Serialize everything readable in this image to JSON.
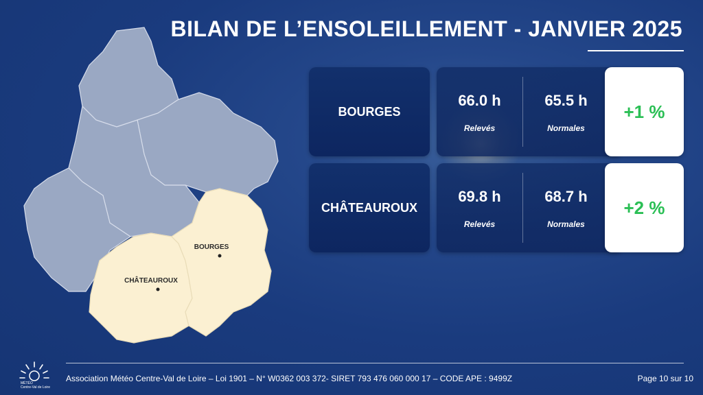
{
  "title": "BILAN DE L’ENSOLEILLEMENT - JANVIER 2025",
  "map": {
    "labels": [
      {
        "name": "BOURGES"
      },
      {
        "name": "CHÂTEAUROUX"
      }
    ],
    "colors": {
      "region": "#9aa8c3",
      "highlight": "#fbf0d2",
      "border": "#d6dcea",
      "dot": "#222222"
    }
  },
  "stations": [
    {
      "city": "BOURGES",
      "observed": "66.0 h",
      "observed_label": "Relevés",
      "normal": "65.5 h",
      "normal_label": "Normales",
      "delta": "+1 %"
    },
    {
      "city": "CHÂTEAUROUX",
      "observed": "69.8 h",
      "observed_label": "Relevés",
      "normal": "68.7 h",
      "normal_label": "Normales",
      "delta": "+2 %"
    }
  ],
  "colors": {
    "delta_positive": "#2bbf55",
    "card_dark": "#0d2660",
    "background": "#1a3b7e"
  },
  "footer": {
    "text": "Association Météo Centre-Val de Loire – Loi 1901 – N° W0362 003 372- SIRET 793 476 060 000 17 – CODE APE : 9499Z",
    "page": "Page 10 sur 10",
    "logo_line1": "MÉTÉO",
    "logo_line2": "Centre-Val de Loire"
  },
  "icons": {
    "logo": "sun-logo-icon"
  }
}
